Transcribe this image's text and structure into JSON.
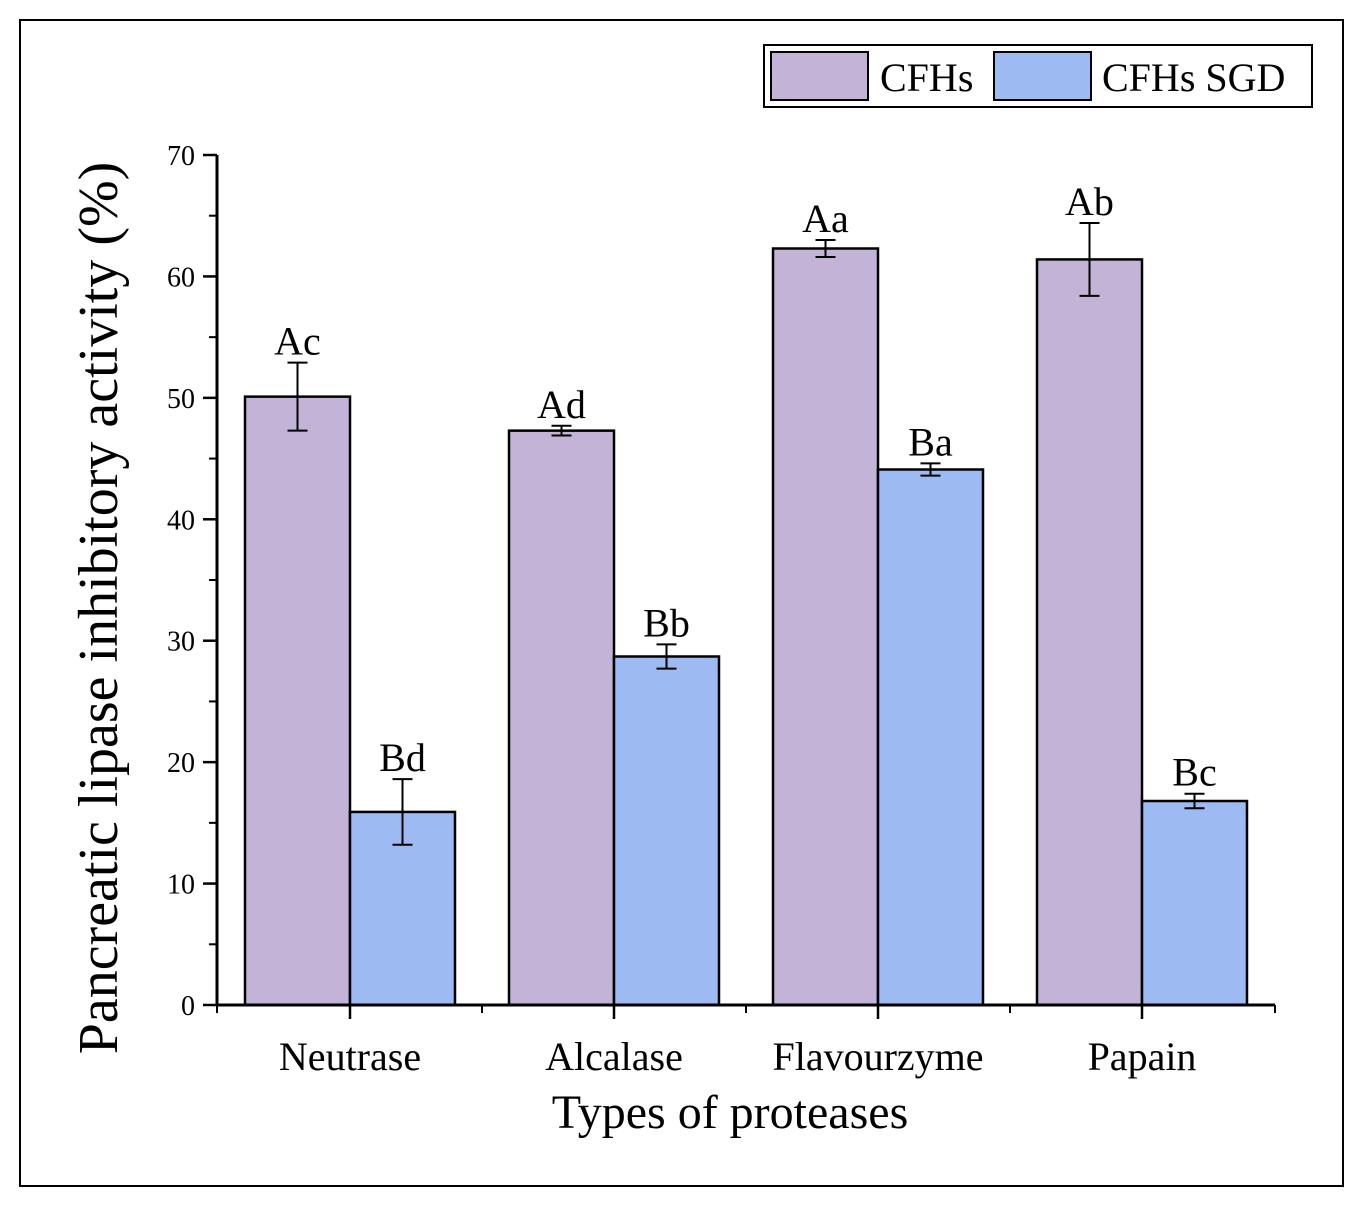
{
  "chart_data": {
    "type": "bar",
    "title": "",
    "xlabel": "Types of proteases",
    "ylabel": "Pancreatic lipase inhibitory activity (%)",
    "ylim": [
      0,
      70
    ],
    "yticks": [
      0,
      10,
      20,
      30,
      40,
      50,
      60,
      70
    ],
    "ytick_labels": [
      "0",
      "10",
      "20",
      "30",
      "40",
      "50",
      "60",
      "70"
    ],
    "grid": false,
    "legend_position": "top-right",
    "categories": [
      "Neutrase",
      "Alcalase",
      "Flavourzyme",
      "Papain"
    ],
    "series": [
      {
        "name": "CFHs",
        "color": "#c3b4d7",
        "values": [
          50.1,
          47.3,
          62.3,
          61.4
        ],
        "errors": [
          2.8,
          0.4,
          0.7,
          3.0
        ],
        "labels": [
          "Ac",
          "Ad",
          "Aa",
          "Ab"
        ]
      },
      {
        "name": "CFHs SGD",
        "color": "#9dbbf2",
        "values": [
          15.9,
          28.7,
          44.1,
          16.8
        ],
        "errors": [
          2.7,
          1.0,
          0.5,
          0.6
        ],
        "labels": [
          "Bd",
          "Bb",
          "Ba",
          "Bc"
        ]
      }
    ]
  }
}
